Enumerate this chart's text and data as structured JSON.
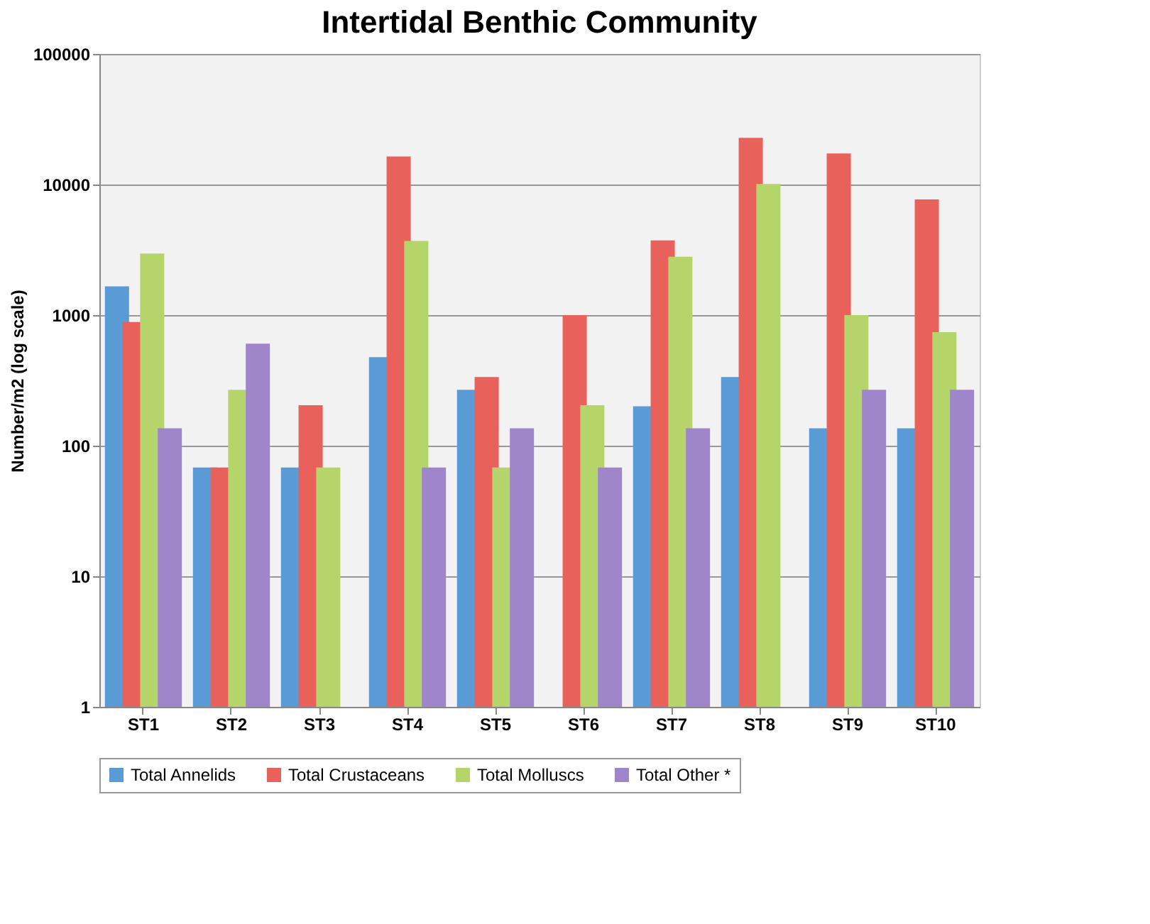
{
  "chart_data": {
    "type": "bar",
    "title": "Intertidal Benthic Community",
    "ylabel": "Number/m2 (log scale)",
    "categories": [
      "ST1",
      "ST2",
      "ST3",
      "ST4",
      "ST5",
      "ST6",
      "ST7",
      "ST8",
      "ST9",
      "ST10"
    ],
    "series": [
      {
        "name": "Total Annelids",
        "color": "#5b9bd5",
        "values": [
          1660,
          68,
          68,
          476,
          268,
          1,
          200,
          336,
          136,
          136
        ]
      },
      {
        "name": "Total Crustaceans",
        "color": "#e8615a",
        "values": [
          885,
          68,
          204,
          16400,
          336,
          1000,
          3730,
          22800,
          17300,
          7700
        ]
      },
      {
        "name": "Total Molluscs",
        "color": "#b5d56a",
        "values": [
          2960,
          268,
          68,
          3700,
          68,
          204,
          2800,
          10100,
          1000,
          740
        ]
      },
      {
        "name": "Total Other *",
        "color": "#9f85c9",
        "values": [
          136,
          605,
          1,
          68,
          136,
          68,
          136,
          1,
          268,
          268
        ]
      }
    ],
    "log": "y",
    "ylim": [
      1,
      100000
    ],
    "yticks": [
      1,
      10,
      100,
      1000,
      10000,
      100000
    ],
    "grid": "y",
    "legend": "bottom"
  }
}
